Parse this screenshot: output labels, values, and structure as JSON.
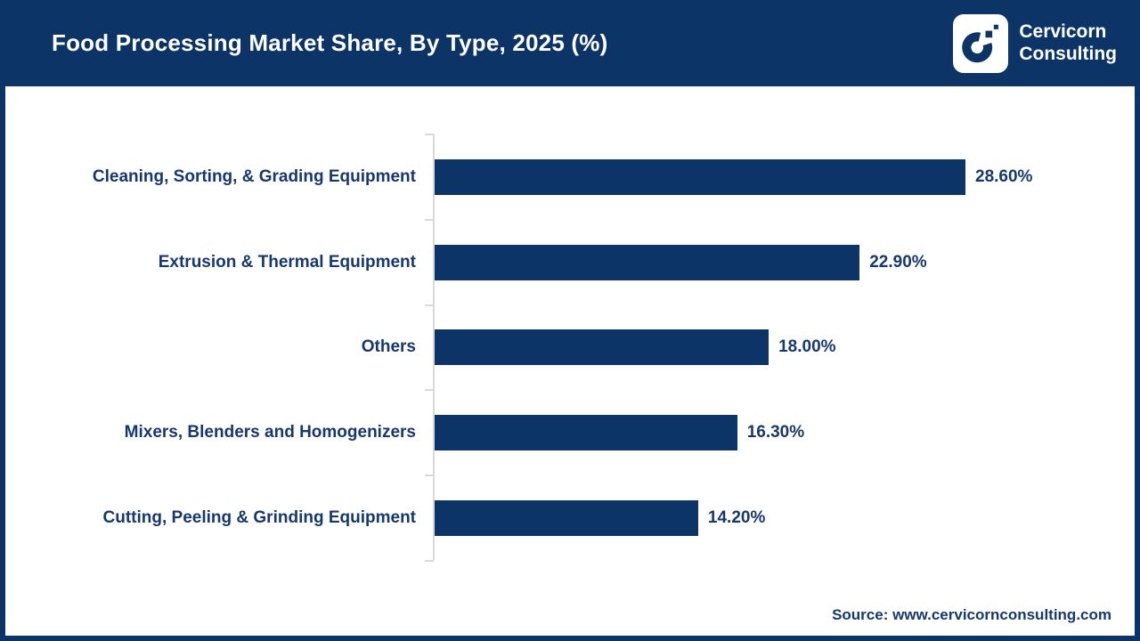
{
  "header": {
    "title": "Food Processing Market Share, By Type, 2025 (%)",
    "logo": {
      "name": "Cervicorn Consulting logo",
      "line1": "Cervicorn",
      "line2": "Consulting"
    }
  },
  "chart_data": {
    "type": "bar",
    "orientation": "horizontal",
    "title": "Food Processing Market Share, By Type, 2025 (%)",
    "categories": [
      "Cleaning, Sorting, & Grading Equipment",
      "Extrusion & Thermal Equipment",
      "Others",
      "Mixers, Blenders and Homogenizers",
      "Cutting, Peeling & Grinding Equipment"
    ],
    "values": [
      28.6,
      22.9,
      18.0,
      16.3,
      14.2
    ],
    "value_labels": [
      "28.60%",
      "22.90%",
      "18.00%",
      "16.30%",
      "14.20%"
    ],
    "xlabel": "",
    "ylabel": "",
    "xlim": [
      0,
      30
    ],
    "grid": false,
    "legend": "none",
    "data_labels": "outside-end"
  },
  "footer": {
    "source": "Source: www.cervicornconsulting.com"
  },
  "colors": {
    "navy": "#0d3467",
    "text_navy": "#16386f",
    "axis": "#d9d9d9",
    "header_bg": "#0d3467",
    "bar": "#0d3467",
    "title_text": "#ffffff"
  }
}
